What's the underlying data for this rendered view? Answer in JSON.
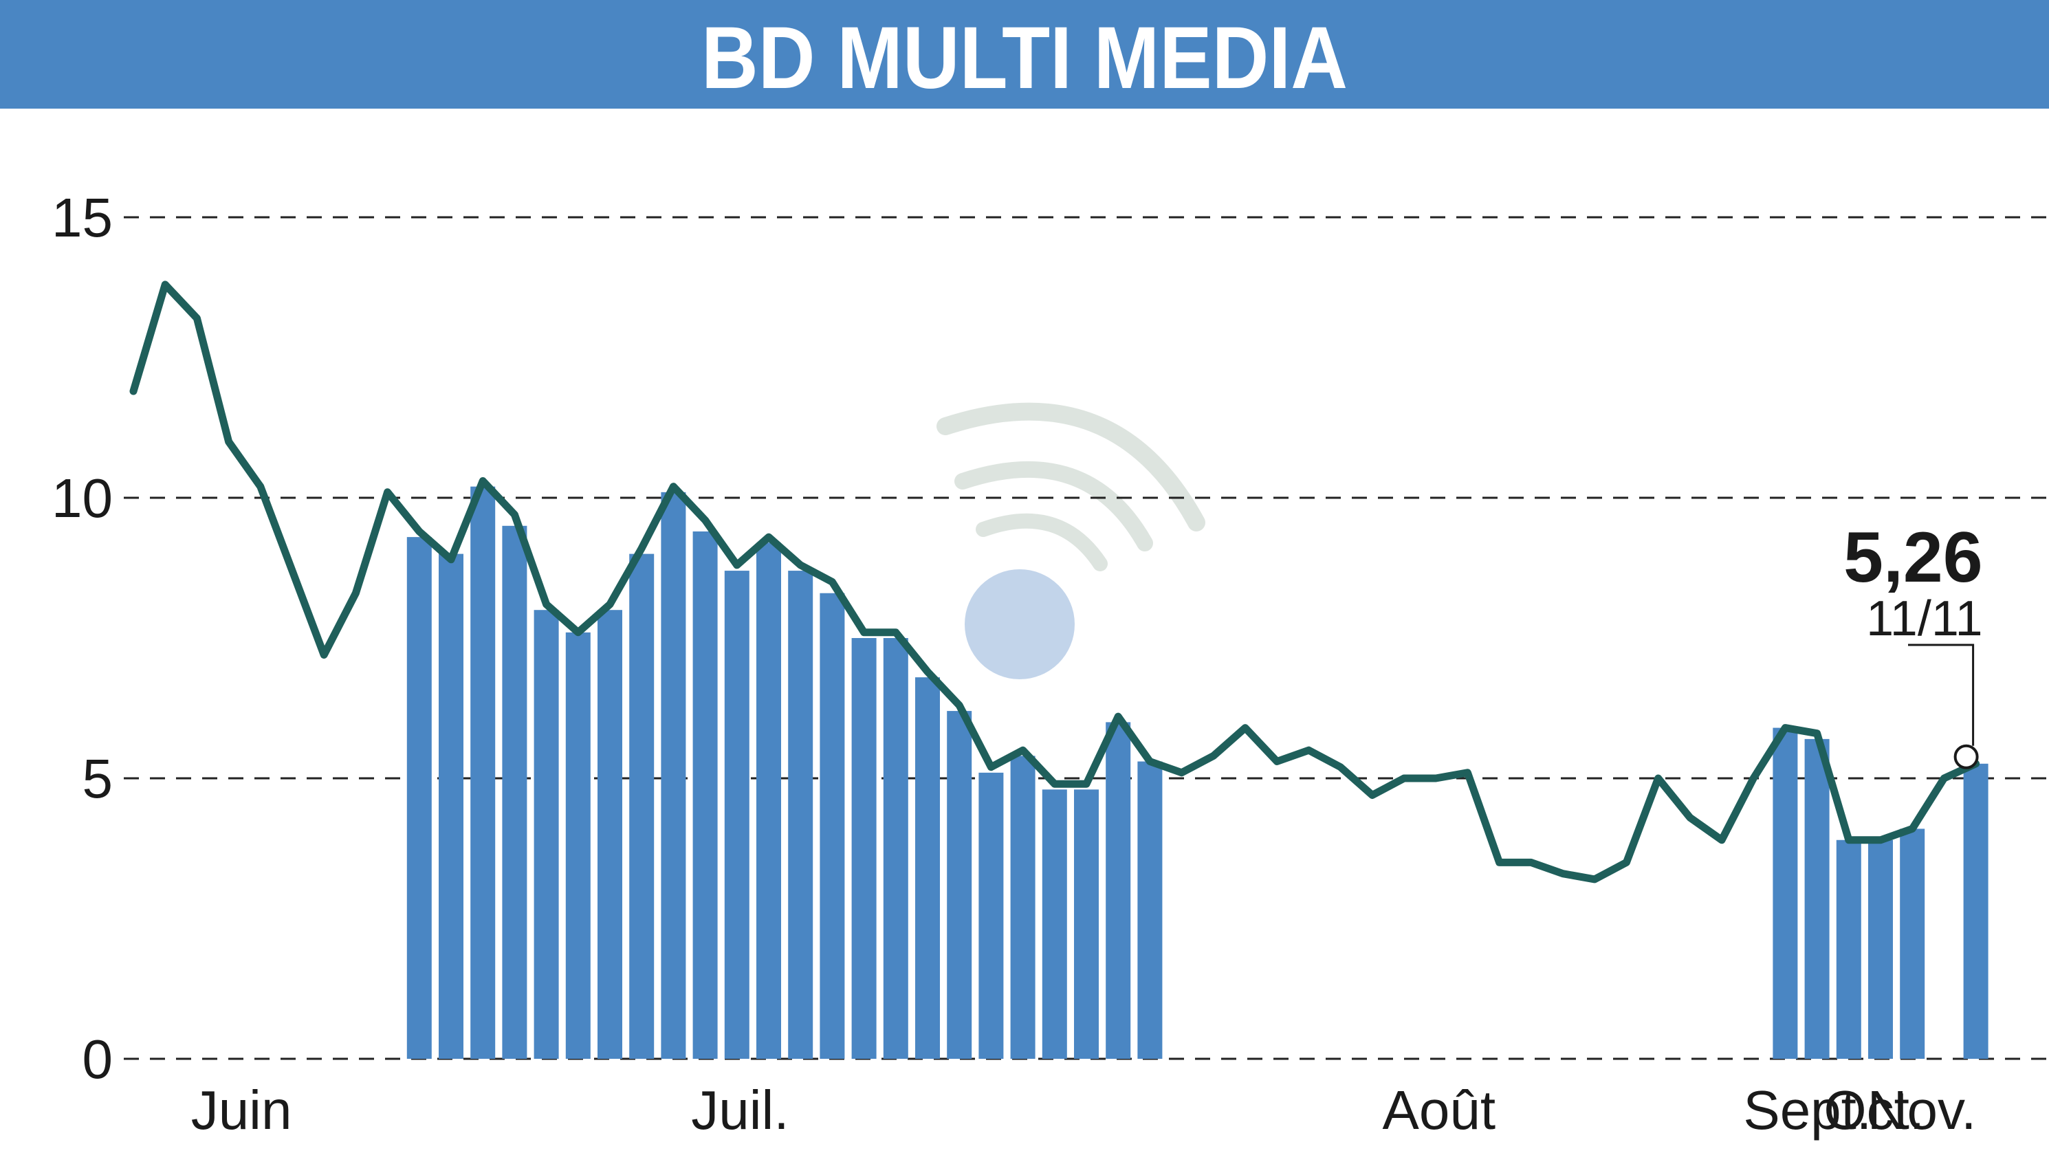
{
  "title": "BD MULTI MEDIA",
  "colors": {
    "title_bar": "#4a86c3",
    "bars": "#4a86c3",
    "line": "#1f5f5b"
  },
  "watermark": {
    "icon": "broadcast-signal-icon"
  },
  "chart_data": {
    "type": "line",
    "title": "BD MULTI MEDIA",
    "xlabel": "",
    "ylabel": "",
    "ylim": [
      0,
      15
    ],
    "yticks": [
      0,
      5,
      10,
      15
    ],
    "grid": true,
    "months": [
      {
        "label": "Juin",
        "x": 3.4
      },
      {
        "label": "Juil.",
        "x": 19.1
      },
      {
        "label": "Août",
        "x": 41.1
      },
      {
        "label": "Sept.",
        "x": 52.7
      },
      {
        "label": "Oct.",
        "x": 54.8
      },
      {
        "label": "Nov.",
        "x": 56.3
      }
    ],
    "series": [
      {
        "x": [
          0,
          1,
          2,
          3,
          4,
          5,
          6,
          7,
          8,
          9,
          10,
          11,
          12,
          13,
          14,
          15,
          16,
          17,
          18,
          19,
          20,
          21,
          22,
          23,
          24,
          25,
          26,
          27,
          28,
          29,
          30,
          31,
          32,
          33,
          34,
          35,
          36,
          37,
          38,
          39,
          40,
          41,
          42,
          43,
          44,
          45,
          46,
          47,
          48,
          49,
          50,
          51,
          52,
          53,
          54,
          55,
          56,
          57,
          58
        ],
        "values": [
          11.9,
          13.8,
          13.2,
          11.0,
          10.2,
          8.7,
          7.2,
          8.3,
          10.1,
          9.4,
          8.9,
          10.3,
          9.7,
          8.1,
          7.6,
          8.1,
          9.1,
          10.2,
          9.6,
          8.8,
          9.3,
          8.8,
          8.5,
          7.6,
          7.6,
          6.9,
          6.3,
          5.2,
          5.5,
          4.9,
          4.9,
          6.1,
          5.3,
          5.1,
          5.4,
          5.9,
          5.3,
          5.5,
          5.2,
          4.7,
          5.0,
          5.0,
          5.1,
          3.5,
          3.5,
          3.3,
          3.2,
          3.5,
          5.0,
          4.3,
          3.9,
          5.0,
          5.9,
          5.8,
          3.9,
          3.9,
          4.1,
          5.0,
          5.26
        ]
      }
    ],
    "volume_bars": {
      "x": [
        9,
        10,
        11,
        12,
        13,
        14,
        15,
        16,
        17,
        18,
        19,
        20,
        21,
        22,
        23,
        24,
        25,
        26,
        27,
        28,
        29,
        30,
        31,
        32,
        52,
        53,
        54,
        55,
        56,
        58
      ],
      "values": [
        9.3,
        9.0,
        10.2,
        9.5,
        8.0,
        7.6,
        8.0,
        9.0,
        10.1,
        9.4,
        8.7,
        9.2,
        8.7,
        8.3,
        7.5,
        7.5,
        6.8,
        6.2,
        5.1,
        5.4,
        4.8,
        4.8,
        6.0,
        5.3,
        5.9,
        5.7,
        3.9,
        3.9,
        4.1,
        5.26
      ]
    },
    "last": {
      "value": "5,26",
      "date": "11/11"
    }
  }
}
